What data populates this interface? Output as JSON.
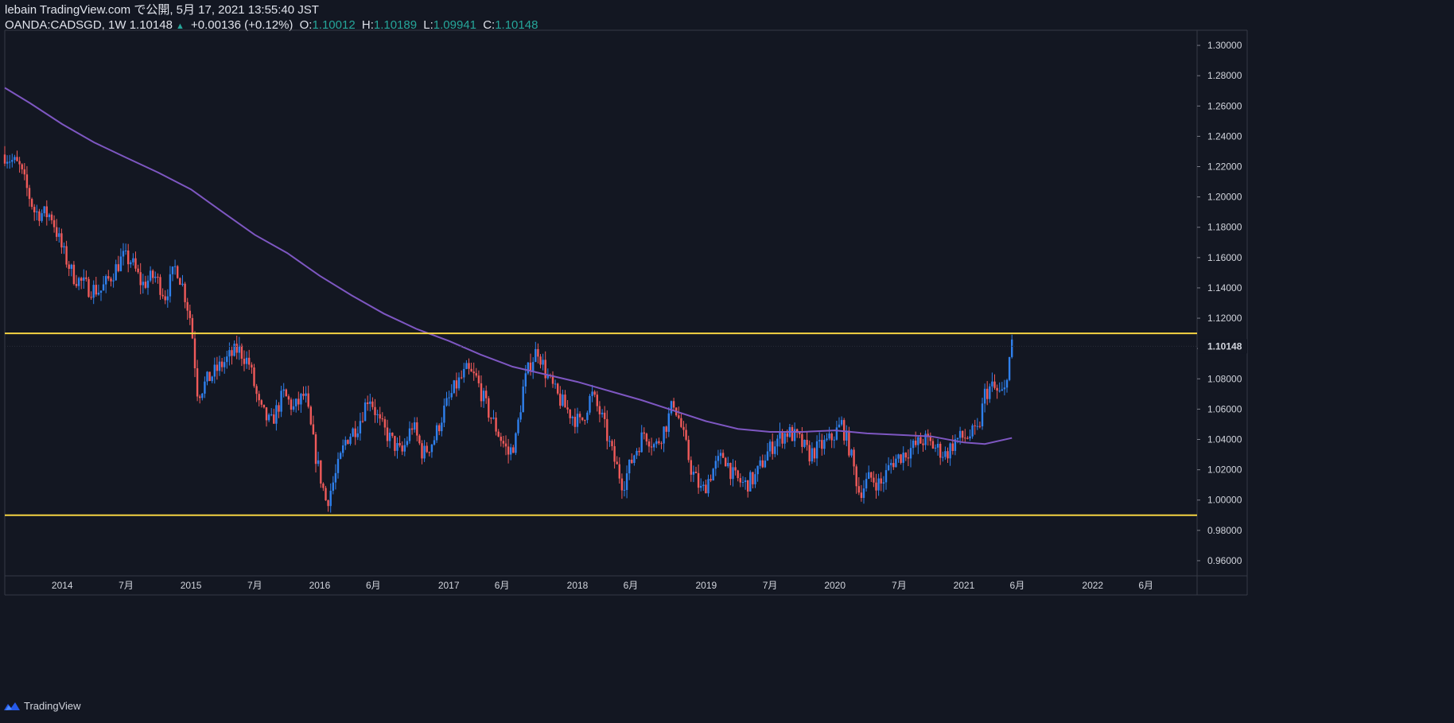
{
  "header": {
    "publish_line": "lebain TradingView.com で公開, 5月 17, 2021 13:55:40 JST",
    "symbol": "OANDA:CADSGD, 1W",
    "last": "1.10148",
    "change": "+0.00136 (+0.12%)",
    "open_label": "O:",
    "open": "1.10012",
    "high_label": "H:",
    "high": "1.10189",
    "low_label": "L:",
    "low": "1.09941",
    "close_label": "C:",
    "close": "1.10148"
  },
  "footer": {
    "brand": "TradingView",
    "logo_icon": "tradingview-logo-icon"
  },
  "colors": {
    "background": "#131722",
    "up": "#2f80ed",
    "down": "#f05a5a",
    "ma": "#7e57c2",
    "hline": "#f5d442",
    "price_tag": "#e0e3eb"
  },
  "chart_data": {
    "type": "candlestick",
    "interval": "1W",
    "ylim": [
      0.95,
      1.31
    ],
    "yticks": [
      "1.30000",
      "1.28000",
      "1.26000",
      "1.24000",
      "1.22000",
      "1.20000",
      "1.18000",
      "1.16000",
      "1.14000",
      "1.12000",
      "1.10000",
      "1.08000",
      "1.06000",
      "1.04000",
      "1.02000",
      "1.00000",
      "0.98000",
      "0.96000"
    ],
    "current_price": 1.10148,
    "current_price_label": "1.10148",
    "xlim": [
      "2013-07-22",
      "2022-10-24"
    ],
    "xticks": [
      {
        "label": "2014",
        "date": "2014-01-01"
      },
      {
        "label": "7月",
        "date": "2014-07-01"
      },
      {
        "label": "2015",
        "date": "2015-01-01"
      },
      {
        "label": "7月",
        "date": "2015-07-01"
      },
      {
        "label": "2016",
        "date": "2016-01-01"
      },
      {
        "label": "6月",
        "date": "2016-06-01"
      },
      {
        "label": "2017",
        "date": "2017-01-01"
      },
      {
        "label": "6月",
        "date": "2017-06-01"
      },
      {
        "label": "2018",
        "date": "2018-01-01"
      },
      {
        "label": "6月",
        "date": "2018-06-01"
      },
      {
        "label": "2019",
        "date": "2019-01-01"
      },
      {
        "label": "7月",
        "date": "2019-07-01"
      },
      {
        "label": "2020",
        "date": "2020-01-01"
      },
      {
        "label": "7月",
        "date": "2020-07-01"
      },
      {
        "label": "2021",
        "date": "2021-01-01"
      },
      {
        "label": "6月",
        "date": "2021-06-01"
      },
      {
        "label": "2022",
        "date": "2022-01-01"
      },
      {
        "label": "6月",
        "date": "2022-06-01"
      }
    ],
    "horizontal_lines": [
      1.11,
      0.99
    ],
    "close_path": [
      [
        "2013-07-22",
        1.228
      ],
      [
        "2013-09-01",
        1.22
      ],
      [
        "2013-10-15",
        1.19
      ],
      [
        "2013-12-01",
        1.188
      ],
      [
        "2014-01-01",
        1.165
      ],
      [
        "2014-02-01",
        1.148
      ],
      [
        "2014-03-15",
        1.14
      ],
      [
        "2014-04-20",
        1.138
      ],
      [
        "2014-05-20",
        1.148
      ],
      [
        "2014-06-20",
        1.16
      ],
      [
        "2014-07-15",
        1.158
      ],
      [
        "2014-08-15",
        1.142
      ],
      [
        "2014-09-20",
        1.148
      ],
      [
        "2014-10-20",
        1.135
      ],
      [
        "2014-11-20",
        1.155
      ],
      [
        "2014-12-10",
        1.14
      ],
      [
        "2015-01-01",
        1.118
      ],
      [
        "2015-01-20",
        1.07
      ],
      [
        "2015-02-20",
        1.08
      ],
      [
        "2015-04-01",
        1.09
      ],
      [
        "2015-05-15",
        1.1
      ],
      [
        "2015-06-15",
        1.09
      ],
      [
        "2015-07-15",
        1.06
      ],
      [
        "2015-08-15",
        1.05
      ],
      [
        "2015-09-20",
        1.07
      ],
      [
        "2015-10-20",
        1.06
      ],
      [
        "2015-11-20",
        1.07
      ],
      [
        "2015-12-20",
        1.03
      ],
      [
        "2016-01-20",
        0.998
      ],
      [
        "2016-02-20",
        1.02
      ],
      [
        "2016-03-15",
        1.04
      ],
      [
        "2016-04-20",
        1.05
      ],
      [
        "2016-05-20",
        1.07
      ],
      [
        "2016-06-20",
        1.05
      ],
      [
        "2016-07-20",
        1.04
      ],
      [
        "2016-08-20",
        1.03
      ],
      [
        "2016-09-20",
        1.05
      ],
      [
        "2016-10-20",
        1.03
      ],
      [
        "2016-11-20",
        1.04
      ],
      [
        "2016-12-20",
        1.06
      ],
      [
        "2017-01-20",
        1.075
      ],
      [
        "2017-02-20",
        1.085
      ],
      [
        "2017-03-20",
        1.08
      ],
      [
        "2017-04-20",
        1.06
      ],
      [
        "2017-05-20",
        1.045
      ],
      [
        "2017-06-20",
        1.03
      ],
      [
        "2017-07-10",
        1.04
      ],
      [
        "2017-08-01",
        1.075
      ],
      [
        "2017-08-20",
        1.09
      ],
      [
        "2017-09-10",
        1.1
      ],
      [
        "2017-10-01",
        1.085
      ],
      [
        "2017-11-01",
        1.07
      ],
      [
        "2017-12-01",
        1.06
      ],
      [
        "2018-01-10",
        1.05
      ],
      [
        "2018-02-10",
        1.07
      ],
      [
        "2018-03-10",
        1.055
      ],
      [
        "2018-04-10",
        1.03
      ],
      [
        "2018-05-10",
        1.01
      ],
      [
        "2018-06-10",
        1.03
      ],
      [
        "2018-07-10",
        1.045
      ],
      [
        "2018-08-10",
        1.035
      ],
      [
        "2018-09-10",
        1.05
      ],
      [
        "2018-10-01",
        1.065
      ],
      [
        "2018-10-20",
        1.05
      ],
      [
        "2018-11-20",
        1.02
      ],
      [
        "2018-12-20",
        1.005
      ],
      [
        "2019-01-20",
        1.02
      ],
      [
        "2019-02-20",
        1.03
      ],
      [
        "2019-03-20",
        1.015
      ],
      [
        "2019-04-20",
        1.01
      ],
      [
        "2019-05-20",
        1.015
      ],
      [
        "2019-06-20",
        1.03
      ],
      [
        "2019-07-20",
        1.04
      ],
      [
        "2019-08-20",
        1.045
      ],
      [
        "2019-09-20",
        1.04
      ],
      [
        "2019-10-20",
        1.03
      ],
      [
        "2019-11-20",
        1.035
      ],
      [
        "2019-12-20",
        1.04
      ],
      [
        "2020-01-20",
        1.05
      ],
      [
        "2020-02-10",
        1.035
      ],
      [
        "2020-03-10",
        1.005
      ],
      [
        "2020-04-10",
        1.015
      ],
      [
        "2020-05-10",
        1.01
      ],
      [
        "2020-06-10",
        1.025
      ],
      [
        "2020-07-10",
        1.03
      ],
      [
        "2020-08-10",
        1.035
      ],
      [
        "2020-09-10",
        1.04
      ],
      [
        "2020-10-10",
        1.035
      ],
      [
        "2020-11-10",
        1.03
      ],
      [
        "2020-12-10",
        1.04
      ],
      [
        "2021-01-10",
        1.042
      ],
      [
        "2021-02-10",
        1.045
      ],
      [
        "2021-03-01",
        1.07
      ],
      [
        "2021-03-20",
        1.075
      ],
      [
        "2021-04-10",
        1.07
      ],
      [
        "2021-04-25",
        1.07
      ],
      [
        "2021-05-03",
        1.085
      ],
      [
        "2021-05-17",
        1.1015
      ]
    ],
    "moving_average": [
      [
        "2013-07-22",
        1.272
      ],
      [
        "2013-10-01",
        1.262
      ],
      [
        "2014-01-01",
        1.248
      ],
      [
        "2014-04-01",
        1.236
      ],
      [
        "2014-07-01",
        1.226
      ],
      [
        "2014-10-01",
        1.216
      ],
      [
        "2015-01-01",
        1.205
      ],
      [
        "2015-04-01",
        1.19
      ],
      [
        "2015-07-01",
        1.175
      ],
      [
        "2015-10-01",
        1.163
      ],
      [
        "2016-01-01",
        1.148
      ],
      [
        "2016-04-01",
        1.135
      ],
      [
        "2016-07-01",
        1.123
      ],
      [
        "2016-10-01",
        1.113
      ],
      [
        "2017-01-01",
        1.105
      ],
      [
        "2017-04-01",
        1.096
      ],
      [
        "2017-07-01",
        1.088
      ],
      [
        "2017-10-01",
        1.083
      ],
      [
        "2018-01-01",
        1.078
      ],
      [
        "2018-04-01",
        1.072
      ],
      [
        "2018-07-01",
        1.066
      ],
      [
        "2018-10-01",
        1.059
      ],
      [
        "2019-01-01",
        1.052
      ],
      [
        "2019-04-01",
        1.047
      ],
      [
        "2019-07-01",
        1.045
      ],
      [
        "2019-10-01",
        1.045
      ],
      [
        "2020-01-01",
        1.046
      ],
      [
        "2020-04-01",
        1.044
      ],
      [
        "2020-07-01",
        1.043
      ],
      [
        "2020-10-01",
        1.042
      ],
      [
        "2021-01-01",
        1.038
      ],
      [
        "2021-03-01",
        1.037
      ],
      [
        "2021-05-17",
        1.041
      ]
    ]
  }
}
